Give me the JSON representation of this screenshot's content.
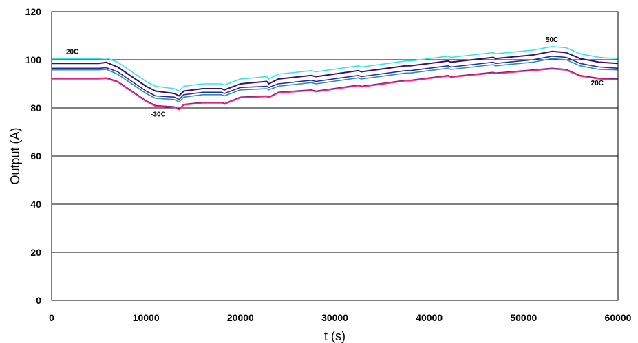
{
  "chart_data": {
    "type": "line",
    "title": "",
    "xlabel": "t (s)",
    "ylabel": "Output (A)",
    "xlim": [
      0,
      60000
    ],
    "ylim": [
      0,
      120
    ],
    "x_ticks": [
      0,
      10000,
      20000,
      30000,
      40000,
      50000,
      60000
    ],
    "y_ticks": [
      0,
      20,
      40,
      60,
      80,
      100,
      120
    ],
    "grid": "horizontal",
    "legend": "none",
    "annotations": [
      {
        "text": "20C",
        "x": 2200,
        "y": 102.5
      },
      {
        "text": "-30C",
        "x": 11300,
        "y": 76.5
      },
      {
        "text": "50C",
        "x": 53000,
        "y": 107.5
      },
      {
        "text": "20C",
        "x": 57800,
        "y": 89.5
      }
    ],
    "x": [
      0,
      5000,
      5800,
      7000,
      8500,
      10000,
      11000,
      13000,
      13500,
      14000,
      16000,
      18000,
      18300,
      20000,
      22800,
      23000,
      24000,
      27500,
      28000,
      32500,
      32800,
      37500,
      38000,
      42000,
      42300,
      46800,
      47000,
      51000,
      53000,
      54500,
      56000,
      58000,
      60000
    ],
    "series": [
      {
        "color": "#33e6e6",
        "values": [
          100.5,
          100.5,
          100.7,
          99,
          95,
          91,
          89,
          88,
          87,
          89,
          90,
          90,
          89.5,
          92,
          93,
          92,
          94,
          95.5,
          95,
          97.5,
          97,
          99.5,
          99.5,
          101.5,
          101,
          103,
          102.5,
          104,
          105.5,
          105,
          102.5,
          101,
          100.5
        ]
      },
      {
        "color": "#3a0f6e",
        "values": [
          98.5,
          98.5,
          98.9,
          97,
          93,
          89,
          87,
          86,
          85,
          87,
          88,
          88,
          87.5,
          90,
          91,
          90,
          92,
          93.5,
          93,
          95.5,
          95,
          97.5,
          97.5,
          99.5,
          99,
          101,
          100.5,
          102,
          103.5,
          103,
          100.5,
          99,
          98.5
        ]
      },
      {
        "color": "#1a2fa0",
        "values": [
          96.5,
          96.5,
          96.7,
          95,
          91,
          87,
          85,
          84.5,
          83.5,
          85.5,
          86.5,
          86.5,
          86,
          88.5,
          89,
          88.5,
          90,
          91.5,
          91,
          93.5,
          93,
          95.5,
          95.5,
          97.5,
          97,
          99,
          98.5,
          100,
          101.5,
          101,
          98.5,
          97,
          96.5
        ]
      },
      {
        "color": "#3a8a9a",
        "values": [
          95.8,
          95.8,
          96,
          94,
          90,
          86,
          84,
          83.5,
          82.5,
          84.5,
          85.5,
          85.5,
          85,
          87.5,
          88,
          87.5,
          89,
          90.5,
          90,
          92.5,
          92,
          94.5,
          94.5,
          96.5,
          96,
          98,
          97.5,
          99,
          100.5,
          100,
          97.5,
          96,
          95.8
        ]
      },
      {
        "color": "#7a1a8a",
        "values": [
          92.3,
          92.3,
          92.5,
          91,
          87,
          83,
          81,
          80.5,
          79.5,
          81.5,
          82.3,
          82.3,
          81.8,
          84.5,
          85,
          84.5,
          86.5,
          87.5,
          87,
          89.5,
          89,
          91.5,
          91.5,
          93.5,
          93,
          94.8,
          94.5,
          95.8,
          96.5,
          96,
          93.5,
          92.3,
          92
        ]
      },
      {
        "color": "#ff2a7a",
        "values": [
          92,
          92,
          92.2,
          90.7,
          86.7,
          82.7,
          80.7,
          80.2,
          79.2,
          81.2,
          82,
          82,
          81.5,
          84.2,
          84.7,
          84.2,
          86.2,
          87.2,
          86.7,
          89.2,
          88.7,
          91.2,
          91.2,
          93.2,
          92.7,
          94.5,
          94.2,
          95.5,
          96.2,
          95.7,
          93.2,
          92,
          91.7
        ]
      }
    ]
  }
}
